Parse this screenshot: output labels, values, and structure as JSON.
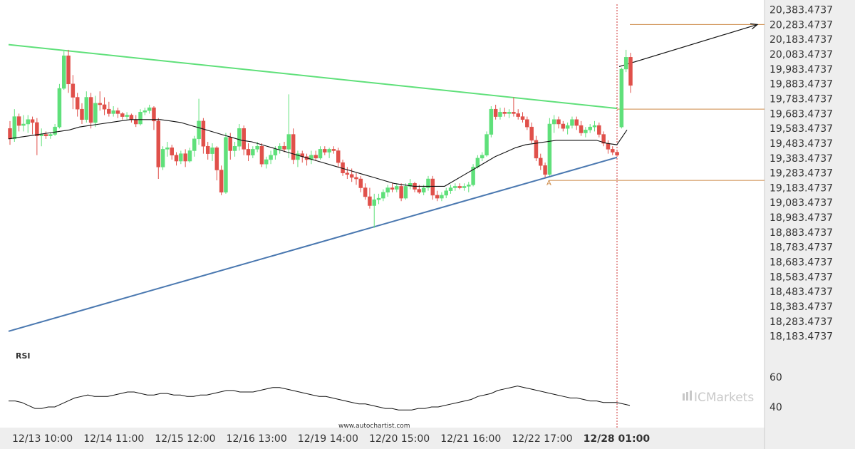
{
  "chart_data": {
    "type": "candlestick",
    "title": "",
    "y_axis": {
      "ticks": [
        "20,383.4737",
        "20,283.4737",
        "20,183.4737",
        "20,083.4737",
        "19,983.4737",
        "19,883.4737",
        "19,783.4737",
        "19,683.4737",
        "19,583.4737",
        "19,483.4737",
        "19,383.4737",
        "19,283.4737",
        "19,183.4737",
        "19,083.4737",
        "18,983.4737",
        "18,883.4737",
        "18,783.4737",
        "18,683.4737",
        "18,583.4737",
        "18,483.4737",
        "18,383.4737",
        "18,283.4737",
        "18,183.4737"
      ],
      "range": [
        18133.4737,
        20420
      ]
    },
    "x_axis": {
      "labels": [
        "12/13 10:00",
        "12/14 11:00",
        "12/15 12:00",
        "12/16 13:00",
        "12/19 14:00",
        "12/20 15:00",
        "12/21 16:00",
        "12/22 17:00",
        "12/28 01:00"
      ],
      "bold_label": "12/28 01:00"
    },
    "pattern": {
      "resistance_line": {
        "start": 20148,
        "end": 19718
      },
      "support_line": {
        "start": 18216,
        "end": 19388
      },
      "breakout_marker_label": "A",
      "levels": [
        20283.4737,
        19713,
        19233
      ],
      "target_arrow": {
        "from": 20000,
        "to": 20283.4737
      }
    },
    "candles": [
      [
        19583,
        19633,
        19473,
        19513
      ],
      [
        19513,
        19713,
        19493,
        19663
      ],
      [
        19663,
        19683,
        19563,
        19603
      ],
      [
        19603,
        19673,
        19563,
        19613
      ],
      [
        19613,
        19673,
        19553,
        19643
      ],
      [
        19643,
        19663,
        19543,
        19623
      ],
      [
        19623,
        19653,
        19403,
        19533
      ],
      [
        19533,
        19583,
        19463,
        19543
      ],
      [
        19543,
        19563,
        19513,
        19533
      ],
      [
        19533,
        19553,
        19513,
        19543
      ],
      [
        19543,
        19613,
        19533,
        19593
      ],
      [
        19593,
        19883,
        19583,
        19853
      ],
      [
        19853,
        20103,
        19843,
        20073
      ],
      [
        20073,
        20113,
        19823,
        19883
      ],
      [
        19883,
        19943,
        19713,
        19793
      ],
      [
        19793,
        19823,
        19663,
        19713
      ],
      [
        19713,
        19753,
        19613,
        19643
      ],
      [
        19643,
        19833,
        19623,
        19793
      ],
      [
        19793,
        19823,
        19583,
        19623
      ],
      [
        19623,
        19803,
        19593,
        19753
      ],
      [
        19753,
        19833,
        19703,
        19743
      ],
      [
        19743,
        19793,
        19673,
        19713
      ],
      [
        19713,
        19763,
        19663,
        19683
      ],
      [
        19683,
        19733,
        19663,
        19703
      ],
      [
        19703,
        19723,
        19653,
        19683
      ],
      [
        19683,
        19693,
        19643,
        19663
      ],
      [
        19663,
        19693,
        19643,
        19673
      ],
      [
        19673,
        19683,
        19623,
        19643
      ],
      [
        19643,
        19673,
        19593,
        19613
      ],
      [
        19613,
        19713,
        19603,
        19693
      ],
      [
        19693,
        19723,
        19673,
        19703
      ],
      [
        19703,
        19743,
        19683,
        19723
      ],
      [
        19723,
        19733,
        19573,
        19633
      ],
      [
        19633,
        19653,
        19243,
        19323
      ],
      [
        19323,
        19463,
        19303,
        19443
      ],
      [
        19443,
        19493,
        19393,
        19453
      ],
      [
        19453,
        19473,
        19373,
        19403
      ],
      [
        19403,
        19423,
        19333,
        19363
      ],
      [
        19363,
        19433,
        19343,
        19413
      ],
      [
        19413,
        19443,
        19323,
        19363
      ],
      [
        19363,
        19453,
        19353,
        19433
      ],
      [
        19433,
        19533,
        19393,
        19513
      ],
      [
        19513,
        19783,
        19473,
        19633
      ],
      [
        19633,
        19653,
        19413,
        19463
      ],
      [
        19463,
        19493,
        19373,
        19413
      ],
      [
        19413,
        19483,
        19363,
        19453
      ],
      [
        19453,
        19463,
        19233,
        19303
      ],
      [
        19303,
        19333,
        19133,
        19153
      ],
      [
        19153,
        19553,
        19143,
        19523
      ],
      [
        19523,
        19553,
        19373,
        19433
      ],
      [
        19433,
        19493,
        19393,
        19463
      ],
      [
        19463,
        19613,
        19433,
        19583
      ],
      [
        19583,
        19603,
        19403,
        19443
      ],
      [
        19443,
        19483,
        19363,
        19403
      ],
      [
        19403,
        19463,
        19383,
        19443
      ],
      [
        19443,
        19493,
        19423,
        19463
      ],
      [
        19463,
        19483,
        19323,
        19343
      ],
      [
        19343,
        19393,
        19313,
        19373
      ],
      [
        19373,
        19433,
        19343,
        19403
      ],
      [
        19403,
        19463,
        19373,
        19443
      ],
      [
        19443,
        19483,
        19413,
        19463
      ],
      [
        19463,
        19493,
        19423,
        19443
      ],
      [
        19443,
        19813,
        19383,
        19543
      ],
      [
        19543,
        19583,
        19343,
        19373
      ],
      [
        19373,
        19433,
        19323,
        19413
      ],
      [
        19413,
        19433,
        19353,
        19393
      ],
      [
        19393,
        19413,
        19333,
        19373
      ],
      [
        19373,
        19433,
        19343,
        19403
      ],
      [
        19403,
        19433,
        19363,
        19383
      ],
      [
        19383,
        19463,
        19373,
        19443
      ],
      [
        19443,
        19463,
        19403,
        19423
      ],
      [
        19423,
        19453,
        19383,
        19443
      ],
      [
        19443,
        19463,
        19413,
        19433
      ],
      [
        19433,
        19453,
        19323,
        19353
      ],
      [
        19353,
        19373,
        19263,
        19283
      ],
      [
        19283,
        19323,
        19243,
        19273
      ],
      [
        19273,
        19313,
        19223,
        19253
      ],
      [
        19253,
        19283,
        19203,
        19243
      ],
      [
        19243,
        19263,
        19153,
        19183
      ],
      [
        19183,
        19213,
        19103,
        19123
      ],
      [
        19123,
        19183,
        19043,
        19063
      ],
      [
        19063,
        19143,
        18913,
        19103
      ],
      [
        19103,
        19143,
        19073,
        19113
      ],
      [
        19113,
        19173,
        19093,
        19153
      ],
      [
        19153,
        19203,
        19123,
        19183
      ],
      [
        19183,
        19213,
        19153,
        19173
      ],
      [
        19173,
        19213,
        19153,
        19193
      ],
      [
        19193,
        19213,
        19093,
        19113
      ],
      [
        19113,
        19213,
        19103,
        19193
      ],
      [
        19193,
        19243,
        19173,
        19213
      ],
      [
        19213,
        19223,
        19153,
        19173
      ],
      [
        19173,
        19203,
        19143,
        19153
      ],
      [
        19153,
        19203,
        19133,
        19183
      ],
      [
        19183,
        19263,
        19163,
        19243
      ],
      [
        19243,
        19263,
        19103,
        19133
      ],
      [
        19133,
        19163,
        19093,
        19113
      ],
      [
        19113,
        19153,
        19093,
        19133
      ],
      [
        19133,
        19183,
        19113,
        19163
      ],
      [
        19163,
        19203,
        19143,
        19183
      ],
      [
        19183,
        19213,
        19163,
        19193
      ],
      [
        19193,
        19213,
        19173,
        19183
      ],
      [
        19183,
        19213,
        19163,
        19193
      ],
      [
        19193,
        19223,
        19153,
        19203
      ],
      [
        19203,
        19343,
        19193,
        19323
      ],
      [
        19323,
        19403,
        19313,
        19383
      ],
      [
        19383,
        19423,
        19363,
        19403
      ],
      [
        19403,
        19563,
        19393,
        19543
      ],
      [
        19543,
        19733,
        19523,
        19713
      ],
      [
        19713,
        19743,
        19643,
        19663
      ],
      [
        19663,
        19723,
        19643,
        19693
      ],
      [
        19693,
        19723,
        19663,
        19683
      ],
      [
        19683,
        19713,
        19653,
        19693
      ],
      [
        19693,
        19793,
        19663,
        19683
      ],
      [
        19683,
        19713,
        19643,
        19663
      ],
      [
        19663,
        19693,
        19623,
        19643
      ],
      [
        19643,
        19663,
        19573,
        19593
      ],
      [
        19593,
        19623,
        19483,
        19503
      ],
      [
        19503,
        19533,
        19363,
        19383
      ],
      [
        19383,
        19413,
        19303,
        19333
      ],
      [
        19333,
        19353,
        19253,
        19273
      ],
      [
        19273,
        19653,
        19263,
        19613
      ],
      [
        19613,
        19673,
        19553,
        19643
      ],
      [
        19643,
        19663,
        19583,
        19613
      ],
      [
        19613,
        19633,
        19563,
        19583
      ],
      [
        19583,
        19623,
        19543,
        19603
      ],
      [
        19603,
        19663,
        19583,
        19643
      ],
      [
        19643,
        19663,
        19573,
        19603
      ],
      [
        19603,
        19633,
        19533,
        19553
      ],
      [
        19553,
        19593,
        19523,
        19573
      ],
      [
        19573,
        19613,
        19553,
        19593
      ],
      [
        19593,
        19633,
        19563,
        19603
      ],
      [
        19603,
        19623,
        19523,
        19543
      ],
      [
        19543,
        19563,
        19463,
        19483
      ],
      [
        19483,
        19503,
        19413,
        19443
      ],
      [
        19443,
        19463,
        19403,
        19423
      ],
      [
        19423,
        19433,
        19393,
        19403
      ],
      [
        19593,
        19993,
        19583,
        19983
      ],
      [
        19983,
        20113,
        19963,
        20063
      ],
      [
        20063,
        20093,
        19823,
        19873
      ]
    ],
    "moving_average": [
      19513,
      19523,
      19533,
      19543,
      19553,
      19563,
      19573,
      19593,
      19603,
      19613,
      19623,
      19633,
      19643,
      19643,
      19643,
      19643,
      19633,
      19623,
      19603,
      19583,
      19563,
      19543,
      19523,
      19503,
      19493,
      19473,
      19453,
      19433,
      19413,
      19393,
      19373,
      19353,
      19333,
      19313,
      19293,
      19273,
      19253,
      19233,
      19213,
      19203,
      19193,
      19193,
      19193,
      19193,
      19233,
      19273,
      19313,
      19353,
      19393,
      19423,
      19453,
      19473,
      19483,
      19493,
      19503,
      19503,
      19503,
      19503,
      19503,
      19483,
      19473,
      19573
    ],
    "rsi": {
      "label": "RSI",
      "ticks": [
        "60",
        "40"
      ],
      "values": [
        44,
        44,
        43,
        41,
        39,
        39,
        40,
        40,
        42,
        44,
        46,
        47,
        48,
        47,
        47,
        47,
        48,
        49,
        50,
        50,
        49,
        48,
        48,
        49,
        49,
        48,
        48,
        47,
        47,
        48,
        48,
        49,
        50,
        51,
        51,
        50,
        50,
        50,
        51,
        52,
        53,
        53,
        52,
        51,
        50,
        49,
        48,
        47,
        47,
        46,
        45,
        44,
        43,
        42,
        42,
        41,
        40,
        39,
        39,
        38,
        38,
        38,
        39,
        39,
        40,
        40,
        41,
        42,
        43,
        44,
        45,
        47,
        48,
        49,
        51,
        52,
        53,
        54,
        53,
        52,
        51,
        50,
        49,
        48,
        47,
        46,
        46,
        45,
        44,
        44,
        43,
        43,
        43,
        42,
        41
      ]
    }
  },
  "footer": {
    "watermark": "www.autochartist.com",
    "brand": "ICMarkets"
  }
}
